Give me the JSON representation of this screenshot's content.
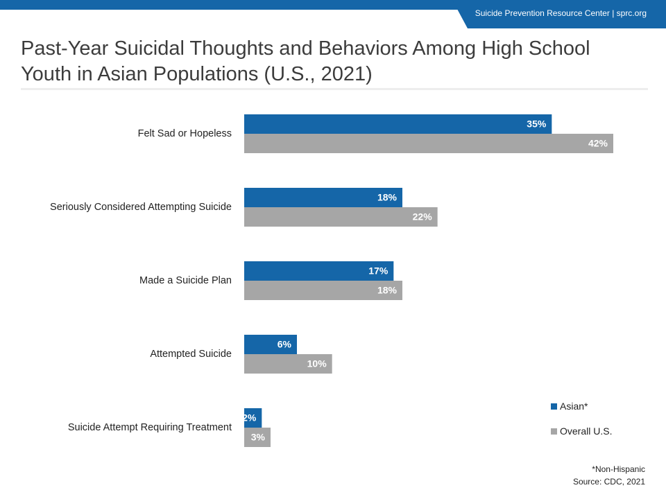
{
  "header": {
    "org_text": "Suicide Prevention Resource Center  | sprc.org",
    "title": "Past-Year Suicidal Thoughts and Behaviors Among High School Youth in Asian Populations (U.S., 2021)"
  },
  "colors": {
    "brand": "#1566a8",
    "asian": "#1566a8",
    "overall": "#a6a6a6"
  },
  "chart_data": {
    "type": "bar",
    "orientation": "horizontal",
    "categories": [
      "Felt Sad or Hopeless",
      "Seriously Considered Attempting Suicide",
      "Made a Suicide Plan",
      "Attempted Suicide",
      "Suicide Attempt Requiring Treatment"
    ],
    "series": [
      {
        "name": "Asian*",
        "values": [
          35,
          18,
          17,
          6,
          2
        ],
        "labels": [
          "35%",
          "18%",
          "17%",
          "6%",
          "2%"
        ]
      },
      {
        "name": "Overall U.S.",
        "values": [
          42,
          22,
          18,
          10,
          3
        ],
        "labels": [
          "42%",
          "22%",
          "18%",
          "10%",
          "3%"
        ]
      }
    ],
    "xlim": [
      0,
      42
    ],
    "grid": false,
    "legend_position": "bottom-right"
  },
  "footnotes": {
    "note": "*Non-Hispanic",
    "source": "Source: CDC, 2021"
  }
}
